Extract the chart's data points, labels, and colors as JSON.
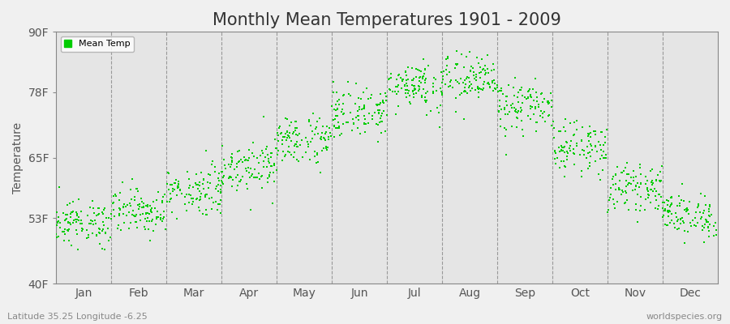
{
  "title": "Monthly Mean Temperatures 1901 - 2009",
  "ylabel": "Temperature",
  "xlabel_bottom_left": "Latitude 35.25 Longitude -6.25",
  "xlabel_bottom_right": "worldspecies.org",
  "ytick_labels": [
    "40F",
    "53F",
    "65F",
    "78F",
    "90F"
  ],
  "ytick_values": [
    40,
    53,
    65,
    78,
    90
  ],
  "ylim": [
    40,
    90
  ],
  "months": [
    "Jan",
    "Feb",
    "Mar",
    "Apr",
    "May",
    "Jun",
    "Jul",
    "Aug",
    "Sep",
    "Oct",
    "Nov",
    "Dec"
  ],
  "mean_temps_F": [
    52.0,
    54.5,
    58.5,
    63.5,
    68.5,
    74.0,
    79.5,
    80.5,
    75.0,
    67.0,
    59.0,
    53.5
  ],
  "std_temps_F": [
    2.2,
    2.2,
    2.5,
    2.5,
    2.5,
    2.5,
    2.5,
    2.5,
    2.5,
    2.5,
    2.2,
    2.2
  ],
  "n_years": 109,
  "dot_color": "#00cc00",
  "dot_size": 3,
  "background_color": "#f0f0f0",
  "plot_bg_color": "#e5e5e5",
  "grid_color": "#999999",
  "title_fontsize": 15,
  "axis_label_fontsize": 10,
  "tick_fontsize": 10,
  "legend_label": "Mean Temp"
}
